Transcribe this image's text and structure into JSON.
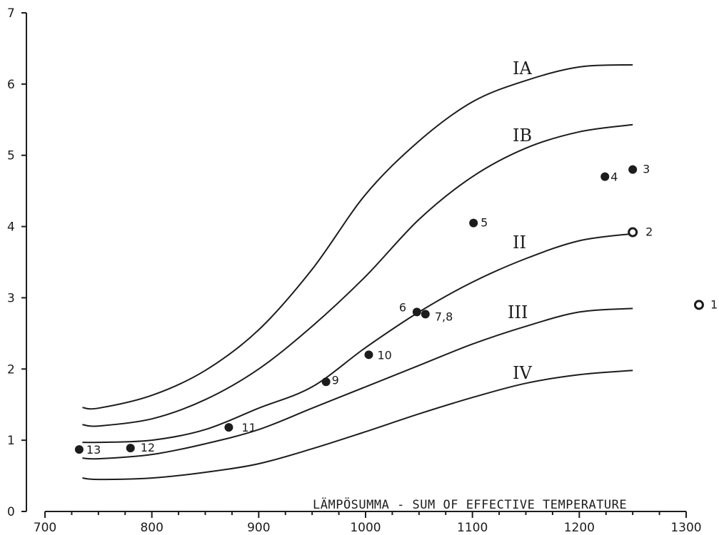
{
  "chart_data": {
    "type": "line",
    "title": "",
    "xlabel": "LÄMPÖSUMMA - SUM OF EFFECTIVE TEMPERATURE",
    "ylabel": "",
    "xlim": [
      700,
      1300
    ],
    "ylim": [
      0,
      7
    ],
    "xticks": [
      "700",
      "800",
      "900",
      "1000",
      "1100",
      "1200",
      "1300"
    ],
    "yticks": [
      "0",
      "1",
      "2",
      "3",
      "4",
      "5",
      "6",
      "7"
    ],
    "grid": false,
    "series": [
      {
        "name": "IA",
        "x": [
          735,
          750,
          800,
          850,
          900,
          950,
          1000,
          1050,
          1100,
          1150,
          1200,
          1250
        ],
        "y": [
          1.46,
          1.45,
          1.63,
          1.98,
          2.55,
          3.4,
          4.45,
          5.2,
          5.75,
          6.05,
          6.24,
          6.27
        ]
      },
      {
        "name": "IB",
        "x": [
          735,
          750,
          800,
          850,
          900,
          950,
          1000,
          1050,
          1100,
          1150,
          1200,
          1250
        ],
        "y": [
          1.22,
          1.2,
          1.3,
          1.57,
          2.0,
          2.6,
          3.3,
          4.1,
          4.7,
          5.1,
          5.33,
          5.43
        ]
      },
      {
        "name": "II",
        "x": [
          735,
          750,
          800,
          850,
          900,
          950,
          1000,
          1050,
          1100,
          1150,
          1200,
          1250
        ],
        "y": [
          0.97,
          0.97,
          1.0,
          1.15,
          1.45,
          1.75,
          2.3,
          2.8,
          3.22,
          3.55,
          3.8,
          3.9
        ]
      },
      {
        "name": "III",
        "x": [
          735,
          750,
          800,
          850,
          900,
          950,
          1000,
          1050,
          1100,
          1150,
          1200,
          1250
        ],
        "y": [
          0.75,
          0.74,
          0.8,
          0.95,
          1.15,
          1.45,
          1.75,
          2.05,
          2.35,
          2.6,
          2.8,
          2.85
        ]
      },
      {
        "name": "IV",
        "x": [
          735,
          750,
          800,
          850,
          900,
          950,
          1000,
          1050,
          1100,
          1150,
          1200,
          1250
        ],
        "y": [
          0.47,
          0.45,
          0.47,
          0.55,
          0.67,
          0.88,
          1.12,
          1.37,
          1.6,
          1.8,
          1.92,
          1.98
        ]
      }
    ],
    "points": [
      {
        "label": "1",
        "x": 1312,
        "y": 2.9,
        "filled": false
      },
      {
        "label": "2",
        "x": 1250,
        "y": 3.92,
        "filled": false
      },
      {
        "label": "3",
        "x": 1250,
        "y": 4.8,
        "filled": true
      },
      {
        "label": "4",
        "x": 1224,
        "y": 4.7,
        "filled": true
      },
      {
        "label": "5",
        "x": 1101,
        "y": 4.05,
        "filled": true
      },
      {
        "label": "6",
        "x": 1048,
        "y": 2.8,
        "filled": true
      },
      {
        "label": "7,8",
        "x": 1056,
        "y": 2.77,
        "filled": true
      },
      {
        "label": "9",
        "x": 963,
        "y": 1.82,
        "filled": true
      },
      {
        "label": "10",
        "x": 1003,
        "y": 2.2,
        "filled": true
      },
      {
        "label": "11",
        "x": 872,
        "y": 1.18,
        "filled": true
      },
      {
        "label": "12",
        "x": 780,
        "y": 0.89,
        "filled": true
      },
      {
        "label": "13",
        "x": 732,
        "y": 0.87,
        "filled": true
      }
    ]
  }
}
